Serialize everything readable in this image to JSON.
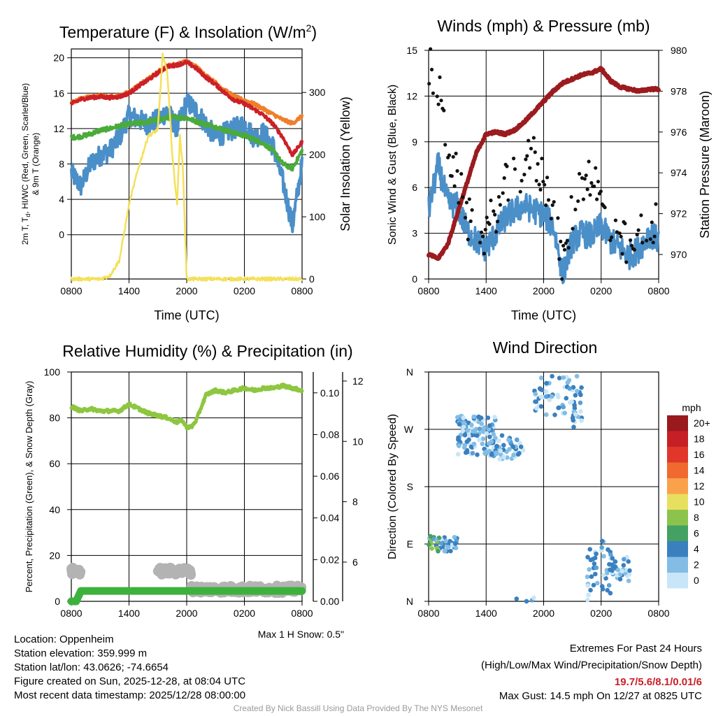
{
  "colors": {
    "red": "#cc2027",
    "orange": "#f07e2a",
    "green": "#4aab3a",
    "blue": "#4b8fc9",
    "yellow": "#f5e05a",
    "maroon": "#9b1b1e",
    "gray": "#b3b3b3",
    "humidity": "#8dc63f",
    "precip": "#3cb23c"
  },
  "chart_data": [
    {
      "id": "temperature",
      "type": "line",
      "title": "Temperature (F) & Insolation (W/m",
      "title_sup": "2",
      "title_close": ")",
      "xlabel": "Time (UTC)",
      "ylabel_left": [
        "2m T, T",
        "d",
        ", HI/WC (Red, Green, Scarlet/Blue)",
        "& 9m T (Orange)"
      ],
      "ylabel_right": "Solar Insolation (Yellow)",
      "x_ticks": [
        "0800",
        "1400",
        "2000",
        "0200",
        "0800"
      ],
      "ylim": [
        -5,
        21
      ],
      "y_ticks": [
        0,
        4,
        8,
        12,
        16,
        20
      ],
      "y2lim": [
        0,
        370
      ],
      "y2_ticks": [
        0,
        100,
        200,
        300
      ],
      "series": [
        {
          "name": "2m T",
          "color": "#cc2027",
          "x": [
            0,
            1,
            2,
            3,
            4,
            5,
            6,
            7,
            8,
            9,
            10,
            11,
            12,
            13,
            14,
            15,
            16,
            17,
            18,
            19,
            20,
            21,
            22,
            23,
            24
          ],
          "values": [
            14.8,
            15.3,
            15.5,
            15.6,
            15.5,
            15.6,
            16.0,
            16.8,
            17.5,
            18.3,
            19.0,
            19.2,
            19.5,
            18.8,
            17.8,
            17.0,
            16.0,
            15.2,
            14.8,
            14.2,
            13.5,
            12.5,
            11.0,
            9.0,
            10.5
          ]
        },
        {
          "name": "9m T",
          "color": "#f07e2a",
          "x": [
            0,
            1,
            2,
            3,
            4,
            5,
            6,
            7,
            8,
            9,
            10,
            11,
            12,
            13,
            14,
            15,
            16,
            17,
            18,
            19,
            20,
            21,
            22,
            23,
            24
          ],
          "values": [
            14.9,
            15.4,
            15.6,
            15.7,
            15.6,
            15.7,
            16.1,
            16.9,
            17.6,
            18.4,
            19.1,
            19.3,
            19.6,
            19.0,
            18.0,
            17.2,
            16.3,
            15.6,
            15.2,
            14.8,
            14.2,
            13.6,
            13.0,
            12.6,
            13.4
          ]
        },
        {
          "name": "Td",
          "color": "#4aab3a",
          "x": [
            0,
            1,
            2,
            3,
            4,
            5,
            6,
            7,
            8,
            9,
            10,
            11,
            12,
            13,
            14,
            15,
            16,
            17,
            18,
            19,
            20,
            21,
            22,
            23,
            24
          ],
          "values": [
            11.0,
            11.1,
            11.4,
            11.8,
            12.0,
            12.3,
            12.5,
            12.6,
            12.8,
            13.0,
            13.2,
            13.3,
            13.2,
            12.8,
            12.5,
            12.2,
            11.8,
            11.5,
            11.2,
            10.8,
            10.3,
            9.5,
            8.0,
            7.5,
            9.5
          ]
        },
        {
          "name": "HI/WC",
          "color": "#4b8fc9",
          "x": [
            0,
            1,
            2,
            3,
            4,
            5,
            6,
            7,
            8,
            9,
            10,
            11,
            12,
            13,
            14,
            15,
            16,
            17,
            18,
            19,
            20,
            21,
            22,
            23,
            24
          ],
          "values": [
            7.0,
            5.5,
            8.0,
            9.0,
            9.5,
            11.0,
            13.5,
            13.0,
            12.5,
            13.0,
            14.0,
            12.0,
            15.0,
            14.0,
            12.5,
            11.0,
            11.5,
            12.0,
            12.5,
            11.0,
            11.5,
            10.0,
            6.0,
            1.0,
            8.0
          ]
        },
        {
          "name": "Insolation",
          "color": "#f5e05a",
          "axis": "right",
          "x": [
            0,
            2,
            3,
            4,
            5,
            6,
            7,
            8,
            9,
            9.5,
            10,
            10.5,
            11,
            11.3,
            11.6,
            12,
            13,
            14,
            24
          ],
          "values": [
            0,
            0,
            0,
            5,
            30,
            120,
            180,
            230,
            240,
            360,
            330,
            200,
            120,
            230,
            180,
            0,
            0,
            0,
            0
          ]
        }
      ]
    },
    {
      "id": "winds",
      "type": "line",
      "title": "Winds (mph) & Pressure (mb)",
      "xlabel": "Time (UTC)",
      "ylabel_left": "Sonic Wind & Gust (Blue, Black)",
      "ylabel_right": "Station Pressure (Maroon)",
      "x_ticks": [
        "0800",
        "1400",
        "2000",
        "0200",
        "0800"
      ],
      "ylim": [
        0,
        15
      ],
      "y_ticks": [
        0,
        3,
        6,
        9,
        12,
        15
      ],
      "y2lim": [
        968.8,
        980
      ],
      "y2_ticks": [
        970,
        972,
        974,
        976,
        978,
        980
      ],
      "series": [
        {
          "name": "Sonic Wind",
          "color": "#4b8fc9",
          "x": [
            0,
            1,
            2,
            3,
            4,
            5,
            6,
            7,
            8,
            9,
            10,
            11,
            12,
            13,
            14,
            15,
            16,
            17,
            18,
            19,
            20,
            21,
            22,
            23,
            24
          ],
          "values": [
            4.5,
            7.5,
            5.0,
            4.8,
            3.2,
            2.5,
            2.0,
            3.0,
            4.0,
            4.5,
            4.8,
            4.5,
            4.2,
            3.5,
            0.3,
            2.5,
            3.0,
            2.8,
            3.5,
            2.5,
            2.0,
            1.5,
            2.0,
            3.0,
            2.5
          ]
        },
        {
          "name": "Gust",
          "color": "#111111",
          "marker": "dot",
          "x": [
            0,
            1,
            2,
            3,
            4,
            5,
            6,
            7,
            8,
            9,
            10,
            11,
            12,
            13,
            14,
            15,
            16,
            17,
            18,
            19,
            20,
            21,
            22,
            23,
            24
          ],
          "values": [
            14.0,
            12.5,
            8.5,
            6.5,
            4.0,
            3.0,
            3.0,
            4.5,
            6.0,
            6.5,
            7.5,
            8.0,
            6.5,
            5.0,
            0.5,
            4.5,
            6.5,
            7.0,
            5.0,
            3.0,
            2.5,
            2.0,
            3.0,
            4.0,
            3.5
          ]
        },
        {
          "name": "Pressure",
          "color": "#9b1b1e",
          "axis": "right",
          "x": [
            0,
            1,
            2,
            3,
            4,
            5,
            6,
            7,
            8,
            9,
            10,
            11,
            12,
            13,
            14,
            15,
            16,
            17,
            18,
            19,
            20,
            21,
            22,
            23,
            24
          ],
          "values": [
            970.0,
            969.8,
            970.5,
            972.0,
            973.5,
            975.0,
            975.9,
            976.0,
            975.9,
            976.1,
            976.5,
            977.0,
            977.5,
            978.0,
            978.4,
            978.6,
            978.8,
            978.9,
            979.1,
            978.5,
            978.2,
            978.1,
            978.0,
            978.1,
            978.1
          ]
        }
      ]
    },
    {
      "id": "humidity",
      "type": "line",
      "title": "Relative Humidity (%) & Precipitation (in)",
      "ylabel_left": "Percent, Precipitation (Green), & Snow Depth (Gray)",
      "x_ticks": [
        "0800",
        "1400",
        "2000",
        "0200",
        "0800"
      ],
      "ylim": [
        0,
        100
      ],
      "y_ticks": [
        0,
        20,
        40,
        60,
        80,
        100
      ],
      "precip_ticks": [
        "0.00",
        "0.02",
        "0.04",
        "0.06",
        "0.08",
        "0.10"
      ],
      "precip_lim": [
        0,
        0.11
      ],
      "snow_ticks": [
        "6",
        "8",
        "10",
        "12"
      ],
      "snow_lim": [
        4.7,
        12.3
      ],
      "note": "Max 1 H Snow: 0.5\"",
      "series": [
        {
          "name": "RH",
          "color": "#8dc63f",
          "x": [
            0,
            1,
            2,
            3,
            4,
            5,
            6,
            6.5,
            7,
            8,
            9,
            10,
            11,
            11.5,
            12,
            12.5,
            13,
            14,
            15,
            16,
            17,
            18,
            19,
            20,
            21,
            22,
            23,
            24
          ],
          "values": [
            85,
            83,
            84,
            83,
            83,
            83,
            86,
            85,
            84,
            82,
            81,
            80,
            78,
            79,
            76,
            76,
            79,
            90,
            92,
            91,
            92,
            93,
            92,
            93,
            93,
            94,
            93,
            92
          ]
        },
        {
          "name": "Precipitation",
          "color": "#3cb23c",
          "x": [
            0,
            0.5,
            1,
            1.5,
            24
          ],
          "values": [
            0,
            0,
            0.005,
            0.005,
            0.005
          ]
        },
        {
          "name": "Snow Depth",
          "color": "#b3b3b3",
          "segments": [
            {
              "x": [
                0,
                1
              ],
              "values": [
                5.7,
                5.7
              ]
            },
            {
              "x": [
                9,
                12.5
              ],
              "values": [
                5.7,
                5.7
              ]
            },
            {
              "x": [
                12.5,
                24
              ],
              "values": [
                5.1,
                5.1
              ]
            }
          ]
        }
      ]
    },
    {
      "id": "wind_direction",
      "type": "scatter",
      "title": "Wind Direction",
      "ylabel_left": "Direction (Colored By Speed)",
      "x_ticks": [
        "0800",
        "1400",
        "2000",
        "0200",
        "0800"
      ],
      "y_ticks": [
        "N",
        "E",
        "S",
        "W",
        "N"
      ],
      "ylim": [
        0,
        360
      ],
      "legend_title": "mph",
      "legend": [
        {
          "label": "20+",
          "color": "#99191c"
        },
        {
          "label": "18",
          "color": "#c62026"
        },
        {
          "label": "16",
          "color": "#e0372a"
        },
        {
          "label": "14",
          "color": "#f06a30"
        },
        {
          "label": "12",
          "color": "#f9a24b"
        },
        {
          "label": "10",
          "color": "#e7e05f"
        },
        {
          "label": "8",
          "color": "#8cc34c"
        },
        {
          "label": "6",
          "color": "#43a162"
        },
        {
          "label": "4",
          "color": "#3a80bf"
        },
        {
          "label": "2",
          "color": "#83bde5"
        },
        {
          "label": "0",
          "color": "#c8e6f7"
        }
      ],
      "clusters": [
        {
          "x_range": [
            0,
            3
          ],
          "dir_range": [
            78,
            102
          ],
          "count": 45
        },
        {
          "x_range": [
            3,
            7
          ],
          "dir_range": [
            228,
            292
          ],
          "count": 120
        },
        {
          "x_range": [
            7,
            10
          ],
          "dir_range": [
            222,
            262
          ],
          "count": 40
        },
        {
          "x_range": [
            9,
            11
          ],
          "dir_range": [
            0,
            6
          ],
          "count": 4
        },
        {
          "x_range": [
            11,
            16
          ],
          "dir_range": [
            290,
            358
          ],
          "count": 60
        },
        {
          "x_range": [
            15,
            16
          ],
          "dir_range": [
            270,
            300
          ],
          "count": 10
        },
        {
          "x_range": [
            16.5,
            19
          ],
          "dir_range": [
            2,
            95
          ],
          "count": 40
        },
        {
          "x_range": [
            19,
            21
          ],
          "dir_range": [
            30,
            70
          ],
          "count": 30
        }
      ]
    }
  ],
  "station": {
    "location": "Location: Oppenheim",
    "elevation": "Station elevation: 359.999 m",
    "latlon": "Station lat/lon: 43.0626; -74.6654",
    "created": "Figure created on Sun, 2025-12-28, at 08:04 UTC",
    "recent": "Most recent data timestamp: 2025/12/28 08:00:00"
  },
  "extremes": {
    "heading": "Extremes For Past 24 Hours",
    "subheading": "(High/Low/Max Wind/Precipitation/Snow Depth)",
    "values": "19.7/5.6/8.1/0.01/6",
    "max_gust": "Max Gust: 14.5 mph On 12/27 at 0825 UTC"
  },
  "credit": "Created By Nick Bassill Using Data Provided By The NYS Mesonet"
}
